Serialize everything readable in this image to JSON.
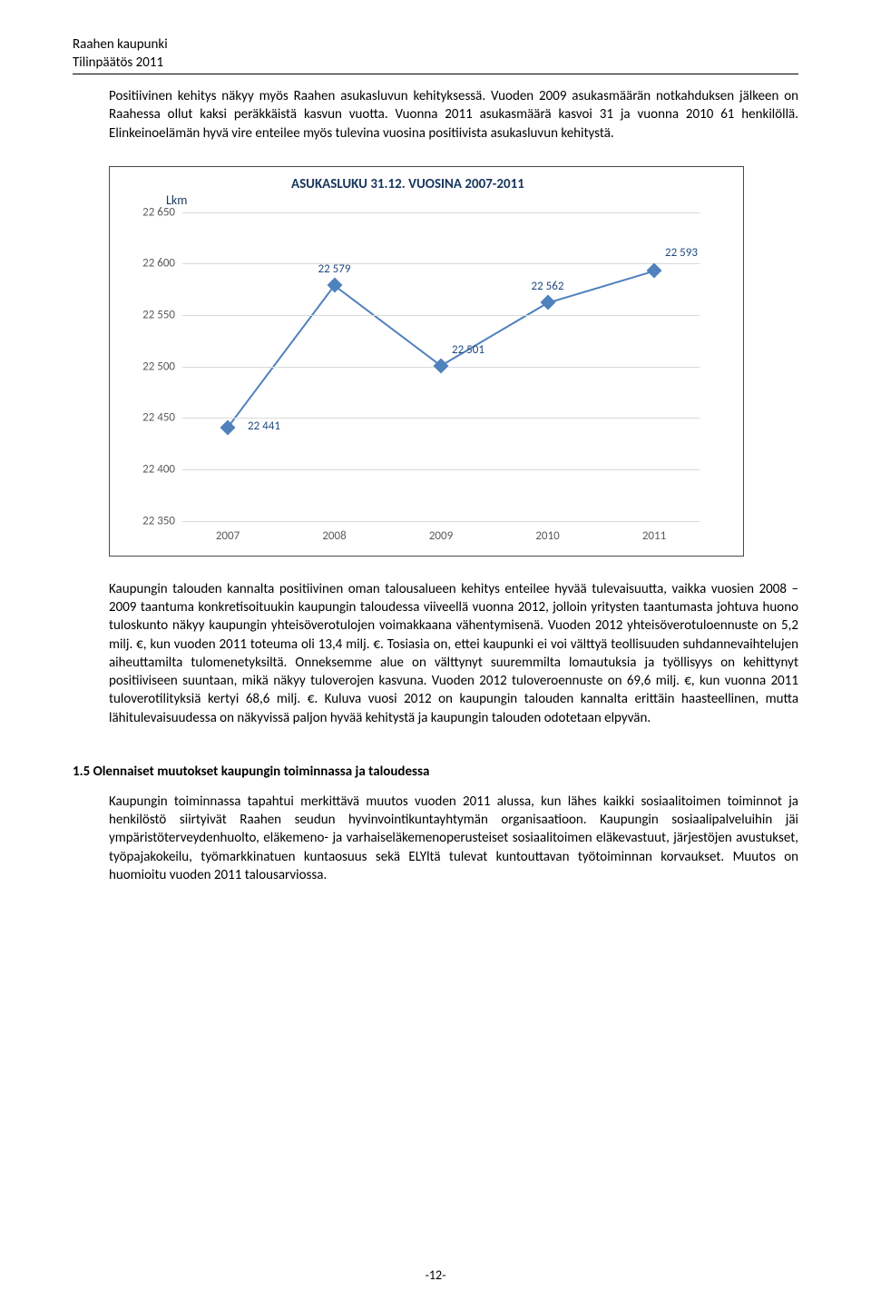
{
  "header": {
    "org": "Raahen kaupunki",
    "doc": "Tilinpäätös 2011"
  },
  "para1": "Positiivinen kehitys näkyy myös Raahen asukasluvun kehityksessä. Vuoden 2009 asukasmäärän notkahduksen jälkeen on Raahessa ollut kaksi peräkkäistä kasvun vuotta. Vuonna 2011 asukasmäärä kasvoi 31 ja vuonna 2010 61 henkilöllä. Elinkeinoelämän hyvä vire enteilee myös tulevina vuosina positiivista asukasluvun kehitystä.",
  "chart": {
    "type": "line",
    "title": "ASUKASLUKU 31.12. VUOSINA 2007-2011",
    "ylabel": "Lkm",
    "categories": [
      "2007",
      "2008",
      "2009",
      "2010",
      "2011"
    ],
    "values": [
      22441,
      22579,
      22501,
      22562,
      22593
    ],
    "data_labels": [
      "22 441",
      "22 579",
      "22 501",
      "22 562",
      "22 593"
    ],
    "ylim": [
      22350,
      22650
    ],
    "ytick_step": 50,
    "yticks": [
      "22 350",
      "22 400",
      "22 450",
      "22 500",
      "22 550",
      "22 600",
      "22 650"
    ],
    "line_color": "#4f81bd",
    "marker_color": "#4f81bd",
    "marker_style": "diamond",
    "grid_color": "#d9d9d9",
    "label_color": "#1f497d",
    "background_color": "#ffffff",
    "title_fontsize": 15,
    "tick_fontsize": 13,
    "line_width": 2,
    "marker_size": 12
  },
  "para2": "Kaupungin talouden kannalta positiivinen oman talousalueen kehitys enteilee hyvää tulevaisuutta, vaikka vuosien 2008 – 2009 taantuma konkretisoituukin kaupungin taloudessa viiveellä vuonna 2012, jolloin yritysten taantumasta johtuva huono tuloskunto näkyy kaupungin yhteisöverotulojen voimakkaana vähentymisenä. Vuoden 2012 yhteisöverotuloennuste on 5,2 milj. €, kun vuoden 2011 toteuma oli 13,4 milj. €. Tosiasia on, ettei kaupunki ei voi välttyä teollisuuden suhdannevaihtelujen aiheuttamilta tulomenetyksiltä. Onneksemme alue on välttynyt suuremmilta lomautuksia ja työllisyys on kehittynyt positiiviseen suuntaan, mikä näkyy tuloverojen kasvuna. Vuoden 2012 tuloveroennuste on 69,6 milj. €, kun vuonna 2011 tuloverotilityksiä kertyi 68,6 milj. €. Kuluva vuosi 2012 on kaupungin talouden kannalta erittäin haasteellinen, mutta lähitulevaisuudessa on näkyvissä paljon hyvää kehitystä ja kaupungin talouden odotetaan elpyvän.",
  "section_heading": "1.5 Olennaiset muutokset kaupungin toiminnassa ja taloudessa",
  "para3": "Kaupungin toiminnassa tapahtui merkittävä muutos vuoden 2011 alussa, kun lähes kaikki sosiaalitoimen toiminnot ja henkilöstö siirtyivät Raahen seudun hyvinvointikuntayhtymän organisaatioon. Kaupungin sosiaalipalveluihin jäi ympäristöterveydenhuolto, eläkemeno- ja varhaiseläkemenoperusteiset sosiaalitoimen eläkevastuut, järjestöjen avustukset, työpajakokeilu, työmarkkinatuen kuntaosuus sekä ELYltä tulevat kuntouttavan työtoiminnan korvaukset. Muutos on huomioitu vuoden 2011 talousarviossa.",
  "page_num": "-12-"
}
